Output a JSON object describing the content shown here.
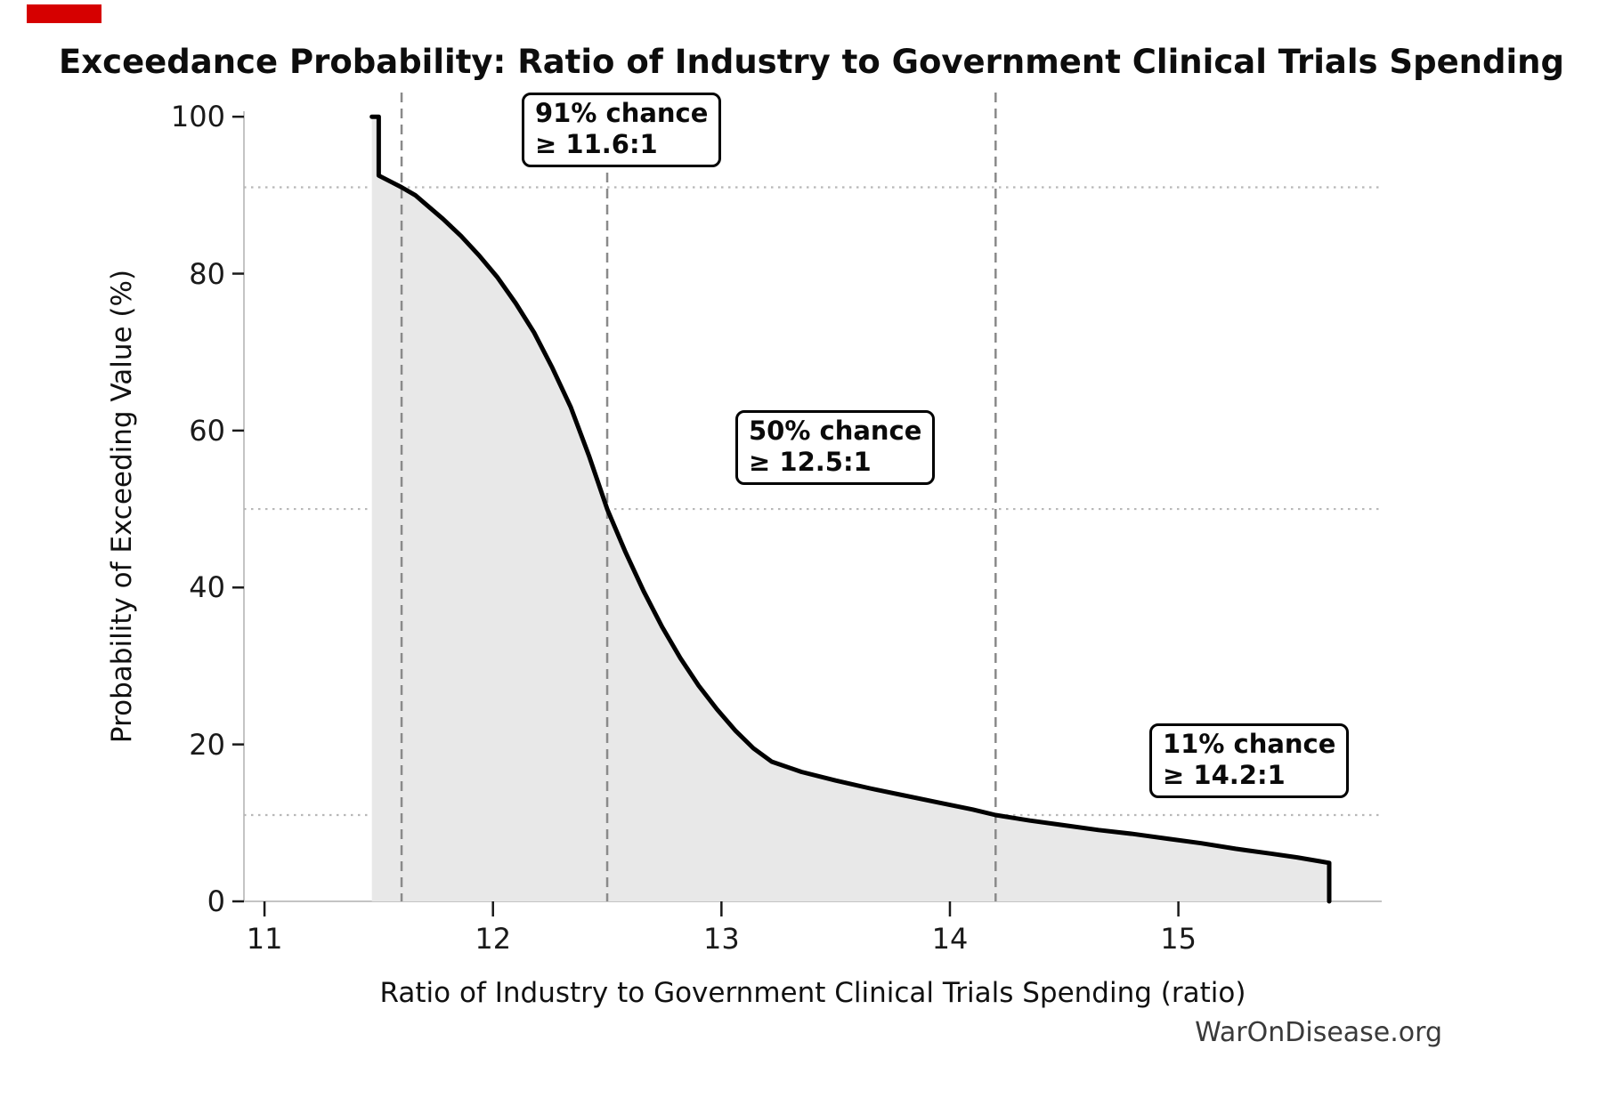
{
  "decor": {
    "corner_marker_color": "#d60000"
  },
  "chart_data": {
    "type": "area",
    "title": "Exceedance Probability: Ratio of Industry to Government Clinical Trials Spending",
    "xlabel": "Ratio of Industry to Government Clinical Trials Spending (ratio)",
    "ylabel": "Probability of Exceeding Value (%)",
    "source": "WarOnDisease.org",
    "x_ticks": [
      11,
      12,
      13,
      14,
      15
    ],
    "y_ticks": [
      0,
      20,
      40,
      60,
      80,
      100
    ],
    "xlim": [
      10.91,
      15.89
    ],
    "ylim": [
      0,
      100.7
    ],
    "grid": "dotted horizontal lines at annotated probabilities",
    "h_gridlines_pct": [
      91,
      50,
      11
    ],
    "v_marker_lines_ratio": [
      11.6,
      12.5,
      14.2
    ],
    "legend": "none",
    "series": [
      {
        "name": "Exceedance probability of spending ratio",
        "points": [
          [
            11.47,
            100
          ],
          [
            11.5,
            100
          ],
          [
            11.5,
            92.5
          ],
          [
            11.56,
            91.6
          ],
          [
            11.6,
            91.0
          ],
          [
            11.66,
            90.0
          ],
          [
            11.7,
            89.0
          ],
          [
            11.78,
            87.0
          ],
          [
            11.86,
            84.8
          ],
          [
            11.94,
            82.3
          ],
          [
            12.02,
            79.5
          ],
          [
            12.1,
            76.2
          ],
          [
            12.18,
            72.5
          ],
          [
            12.26,
            68.0
          ],
          [
            12.34,
            63.0
          ],
          [
            12.42,
            56.8
          ],
          [
            12.5,
            50.0
          ],
          [
            12.58,
            44.5
          ],
          [
            12.66,
            39.5
          ],
          [
            12.74,
            35.0
          ],
          [
            12.82,
            31.0
          ],
          [
            12.9,
            27.5
          ],
          [
            12.98,
            24.5
          ],
          [
            13.06,
            21.8
          ],
          [
            13.14,
            19.5
          ],
          [
            13.22,
            17.8
          ],
          [
            13.35,
            16.5
          ],
          [
            13.5,
            15.4
          ],
          [
            13.65,
            14.4
          ],
          [
            13.8,
            13.5
          ],
          [
            13.95,
            12.6
          ],
          [
            14.1,
            11.7
          ],
          [
            14.2,
            11.0
          ],
          [
            14.35,
            10.3
          ],
          [
            14.5,
            9.7
          ],
          [
            14.65,
            9.1
          ],
          [
            14.8,
            8.6
          ],
          [
            14.95,
            8.0
          ],
          [
            15.1,
            7.4
          ],
          [
            15.25,
            6.7
          ],
          [
            15.4,
            6.1
          ],
          [
            15.52,
            5.6
          ],
          [
            15.62,
            5.1
          ],
          [
            15.66,
            4.9
          ],
          [
            15.66,
            0
          ]
        ]
      }
    ],
    "annotations": [
      {
        "line1": "91% chance",
        "line2": "≥ 11.6:1",
        "ratio": 11.6,
        "pct": 91
      },
      {
        "line1": "50% chance",
        "line2": "≥ 12.5:1",
        "ratio": 12.5,
        "pct": 50
      },
      {
        "line1": "11% chance",
        "line2": "≥ 14.2:1",
        "ratio": 14.2,
        "pct": 11
      }
    ],
    "colors": {
      "line": "#000000",
      "fill": "#e8e8e8",
      "grid": "#b8b8b8",
      "marker_line": "#8a8a8a",
      "spine": "#c4c4c4",
      "tick": "#1a1a1a",
      "footer": "#3a3a3a"
    }
  }
}
